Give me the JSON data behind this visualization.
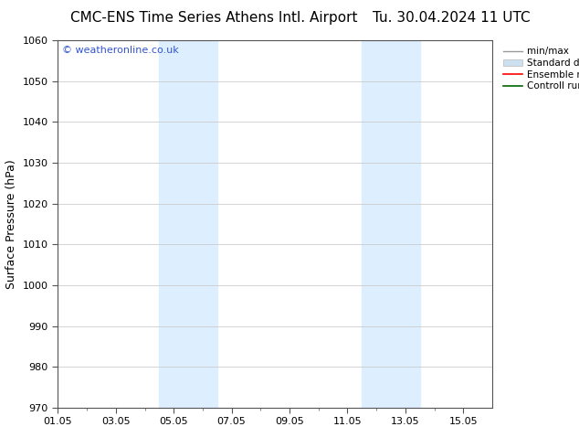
{
  "title_left": "CMC-ENS Time Series Athens Intl. Airport",
  "title_right": "Tu. 30.04.2024 11 UTC",
  "ylabel": "Surface Pressure (hPa)",
  "ylim": [
    970,
    1060
  ],
  "yticks": [
    970,
    980,
    990,
    1000,
    1010,
    1020,
    1030,
    1040,
    1050,
    1060
  ],
  "xtick_labels": [
    "01.05",
    "03.05",
    "05.05",
    "07.05",
    "09.05",
    "11.05",
    "13.05",
    "15.05"
  ],
  "xtick_positions": [
    0,
    2,
    4,
    6,
    8,
    10,
    12,
    14
  ],
  "xlim": [
    0,
    15
  ],
  "blue_bands": [
    {
      "x_start": 3.5,
      "x_end": 5.5
    },
    {
      "x_start": 10.5,
      "x_end": 12.5
    }
  ],
  "blue_band_color": "#ddeeff",
  "watermark_text": "© weatheronline.co.uk",
  "watermark_color": "#3355cc",
  "watermark_fontsize": 8,
  "legend_items": [
    {
      "label": "min/max",
      "color": "#999999",
      "lw": 1.0,
      "style": "solid"
    },
    {
      "label": "Standard deviation",
      "color": "#cce0f0",
      "lw": 5,
      "style": "solid"
    },
    {
      "label": "Ensemble mean run",
      "color": "#ff0000",
      "lw": 1.2,
      "style": "solid"
    },
    {
      "label": "Controll run",
      "color": "#006600",
      "lw": 1.2,
      "style": "solid"
    }
  ],
  "bg_color": "#ffffff",
  "grid_color": "#cccccc",
  "title_fontsize": 11,
  "axis_label_fontsize": 9,
  "tick_fontsize": 8,
  "legend_fontsize": 7.5
}
